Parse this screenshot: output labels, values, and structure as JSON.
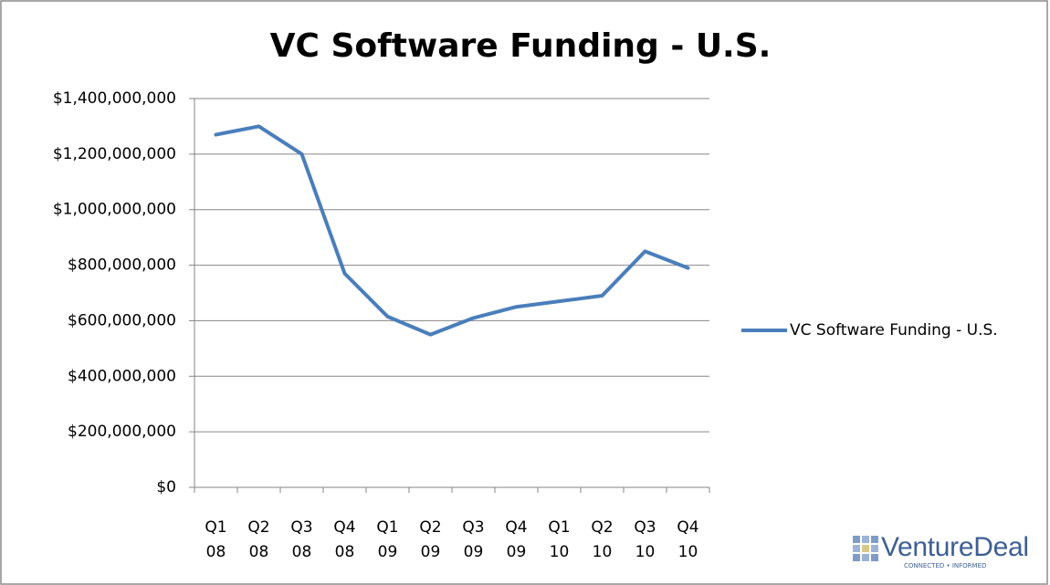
{
  "chart_data": {
    "type": "line",
    "title": "VC Software Funding - U.S.",
    "categories": [
      [
        "Q1",
        "08"
      ],
      [
        "Q2",
        "08"
      ],
      [
        "Q3",
        "08"
      ],
      [
        "Q4",
        "08"
      ],
      [
        "Q1",
        "09"
      ],
      [
        "Q2",
        "09"
      ],
      [
        "Q3",
        "09"
      ],
      [
        "Q4",
        "09"
      ],
      [
        "Q1",
        "10"
      ],
      [
        "Q2",
        "10"
      ],
      [
        "Q3",
        "10"
      ],
      [
        "Q4",
        "10"
      ]
    ],
    "series": [
      {
        "name": "VC Software Funding - U.S.",
        "color": "#4a7ebb",
        "values": [
          1270000000,
          1300000000,
          1200000000,
          770000000,
          615000000,
          550000000,
          610000000,
          650000000,
          670000000,
          690000000,
          850000000,
          790000000
        ]
      }
    ],
    "ylim": [
      0,
      1400000000
    ],
    "yticks": [
      {
        "value": 0,
        "label": "$0"
      },
      {
        "value": 200000000,
        "label": "$200,000,000"
      },
      {
        "value": 400000000,
        "label": "$400,000,000"
      },
      {
        "value": 600000000,
        "label": "$600,000,000"
      },
      {
        "value": 800000000,
        "label": "$800,000,000"
      },
      {
        "value": 1000000000,
        "label": "$1,000,000,000"
      },
      {
        "value": 1200000000,
        "label": "$1,200,000,000"
      },
      {
        "value": 1400000000,
        "label": "$1,400,000,000"
      }
    ],
    "grid": true,
    "legend": "right",
    "logo": {
      "name": "VentureDeal",
      "tagline": "CONNECTED • INFORMED"
    }
  }
}
